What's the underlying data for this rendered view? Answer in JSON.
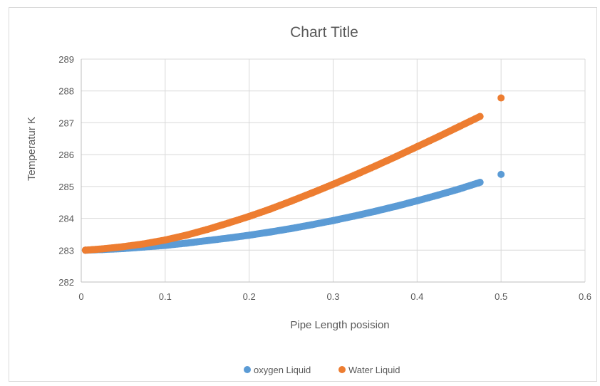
{
  "chart_data": {
    "type": "scatter",
    "title": "Chart Title",
    "xlabel": "Pipe Length posision",
    "ylabel": "Temperatur K",
    "xlim": [
      0,
      0.6
    ],
    "ylim": [
      282,
      289
    ],
    "xticks": [
      0,
      0.1,
      0.2,
      0.3,
      0.4,
      0.5,
      0.6
    ],
    "xtick_labels": [
      "0",
      "0.1",
      "0.2",
      "0.3",
      "0.4",
      "0.5",
      "0.6"
    ],
    "yticks": [
      282,
      283,
      284,
      285,
      286,
      287,
      288,
      289
    ],
    "ytick_labels": [
      "282",
      "283",
      "284",
      "285",
      "286",
      "287",
      "288",
      "289"
    ],
    "grid": true,
    "legend_position": "bottom",
    "series": [
      {
        "name": "oxygen Liquid",
        "color": "#5b9bd5",
        "x": [
          0.005,
          0.025,
          0.05,
          0.075,
          0.1,
          0.125,
          0.15,
          0.175,
          0.2,
          0.225,
          0.25,
          0.275,
          0.3,
          0.325,
          0.35,
          0.375,
          0.4,
          0.425,
          0.45,
          0.475,
          0.5
        ],
        "y": [
          283.0,
          283.02,
          283.05,
          283.1,
          283.15,
          283.22,
          283.3,
          283.38,
          283.47,
          283.57,
          283.68,
          283.8,
          283.93,
          284.07,
          284.22,
          284.38,
          284.55,
          284.73,
          284.92,
          285.13,
          285.38
        ]
      },
      {
        "name": "Water Liquid",
        "color": "#ed7d31",
        "x": [
          0.005,
          0.025,
          0.05,
          0.075,
          0.1,
          0.125,
          0.15,
          0.175,
          0.2,
          0.225,
          0.25,
          0.275,
          0.3,
          0.325,
          0.35,
          0.375,
          0.4,
          0.425,
          0.45,
          0.475,
          0.5
        ],
        "y": [
          283.0,
          283.04,
          283.11,
          283.2,
          283.32,
          283.47,
          283.65,
          283.85,
          284.06,
          284.29,
          284.54,
          284.8,
          285.07,
          285.35,
          285.64,
          285.94,
          286.25,
          286.56,
          286.88,
          287.2,
          287.78
        ]
      }
    ]
  }
}
